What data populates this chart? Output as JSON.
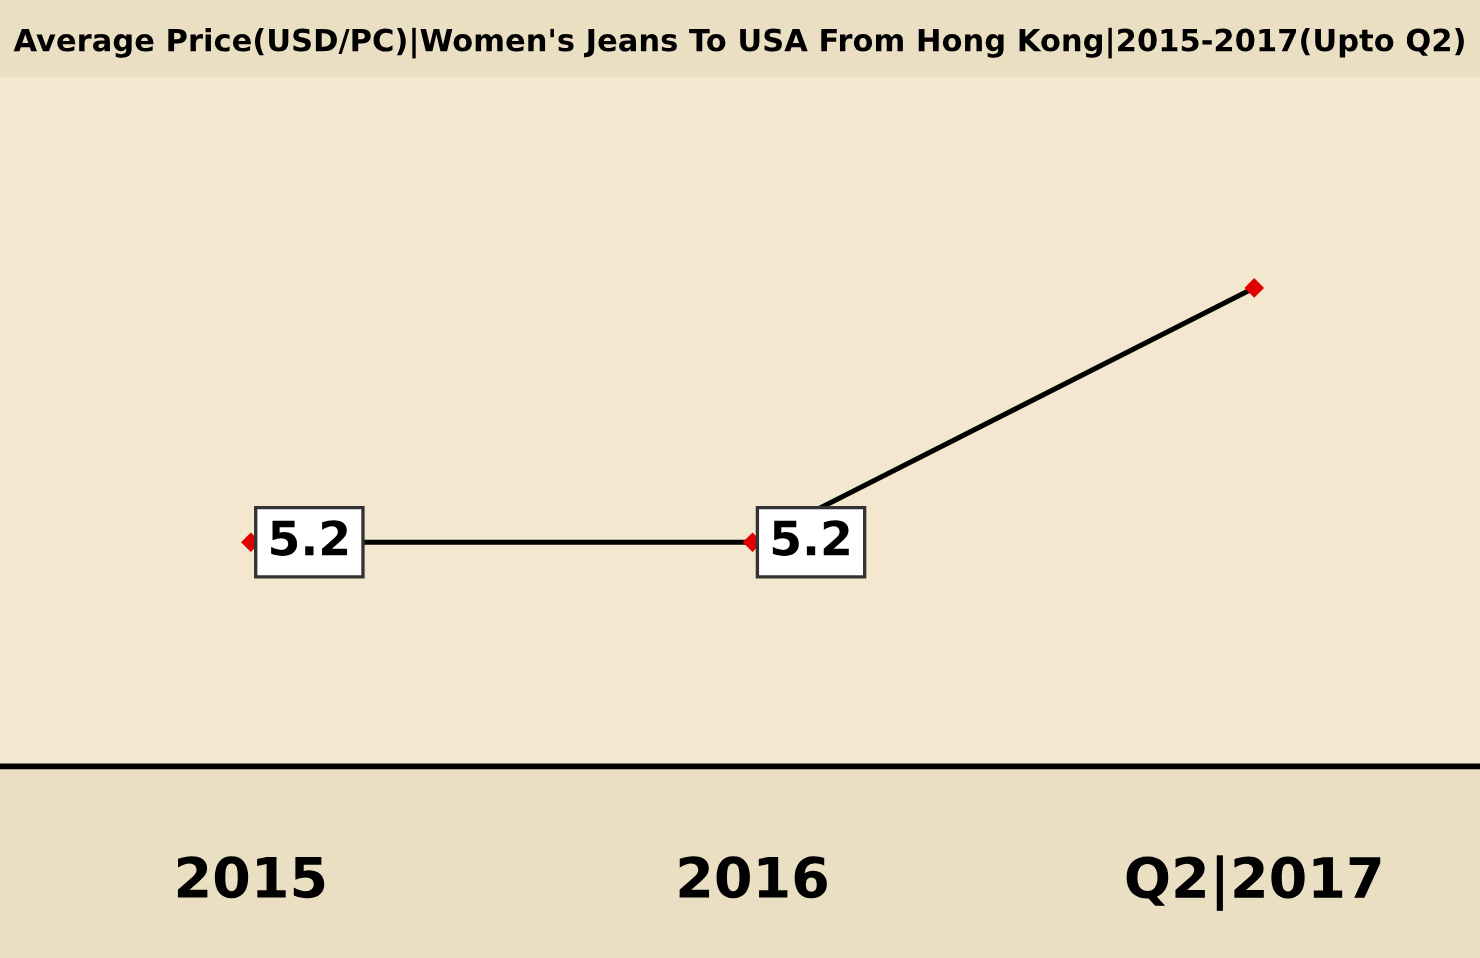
{
  "chart_data": {
    "type": "line",
    "title": "Average Price(USD/PC)|Women's Jeans To USA From Hong Kong|2015-2017(Upto Q2)",
    "categories": [
      "2015",
      "2016",
      "Q2|2017"
    ],
    "series": [
      {
        "color": "#000000",
        "values": [
          5.2,
          5.2,
          11.1
        ],
        "value_labels": [
          "5.2",
          "5.2",
          null
        ]
      }
    ],
    "ylim": [
      0,
      16
    ],
    "tick_labels": "x",
    "grid": false,
    "legend": false,
    "marker": "diamond",
    "line_style": "solid"
  }
}
